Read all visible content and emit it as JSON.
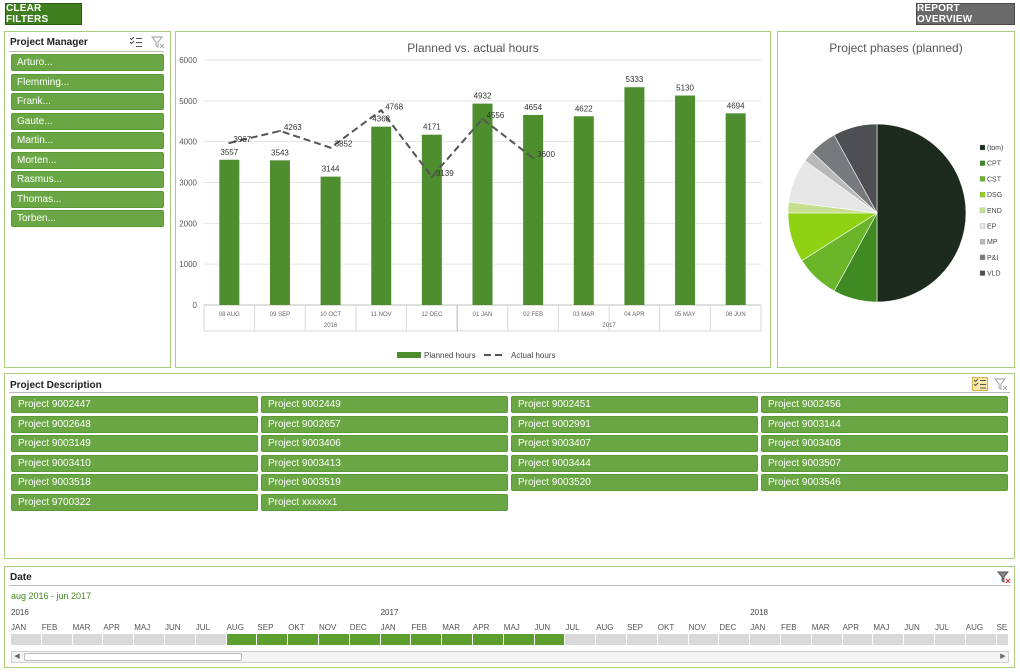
{
  "toolbar": {
    "clear_filters": "CLEAR FILTERS",
    "report_overview": "REPORT OVERVIEW"
  },
  "project_manager": {
    "title": "Project Manager",
    "items": [
      "Arturo...",
      "Flemming...",
      "Frank...",
      "Gaute...",
      "Martin...",
      "Morten...",
      "Rasmus...",
      "Thomas...",
      "Torben..."
    ]
  },
  "chart_data": [
    {
      "type": "bar",
      "title": "Planned vs. actual hours",
      "categories": [
        "08 AUG",
        "09 SEP",
        "10 OCT",
        "11 NOV",
        "12 DEC",
        "01 JAN",
        "02 FEB",
        "03 MAR",
        "04 APR",
        "05 MAY",
        "06 JUN"
      ],
      "year_groups": [
        {
          "label": "2016",
          "span": 5
        },
        {
          "label": "2017",
          "span": 6
        }
      ],
      "ylim": [
        0,
        6000
      ],
      "yticks": [
        0,
        1000,
        2000,
        3000,
        4000,
        5000,
        6000
      ],
      "grid": true,
      "legend": "bottom",
      "series": [
        {
          "name": "Planned hours",
          "type": "bar",
          "color": "#4e8e2e",
          "values": [
            3557,
            3543,
            3144,
            4368,
            4171,
            4932,
            4654,
            4622,
            5333,
            5130,
            4694
          ]
        },
        {
          "name": "Actual hours",
          "type": "line",
          "color": "#555555",
          "dashed": true,
          "values": [
            3967,
            4263,
            3852,
            4768,
            3139,
            4556,
            3600,
            null,
            null,
            null,
            null
          ]
        }
      ]
    },
    {
      "type": "pie",
      "title": "Project phases (planned)",
      "legend": "right",
      "slices": [
        {
          "name": "(tom)",
          "value": 50,
          "color": "#1c2b1e"
        },
        {
          "name": "CPT",
          "value": 8,
          "color": "#3f8a22"
        },
        {
          "name": "CST",
          "value": 8,
          "color": "#6bb52a"
        },
        {
          "name": "DSG",
          "value": 9,
          "color": "#8fd113"
        },
        {
          "name": "END",
          "value": 2,
          "color": "#c6e08f"
        },
        {
          "name": "EP",
          "value": 8,
          "color": "#e6e6e6"
        },
        {
          "name": "MP",
          "value": 2,
          "color": "#b9b9b9"
        },
        {
          "name": "P&I",
          "value": 5,
          "color": "#777a7d"
        },
        {
          "name": "VLD",
          "value": 8,
          "color": "#4d4f52"
        }
      ]
    }
  ],
  "project_description": {
    "title": "Project Description",
    "items": [
      "Project 9002447",
      "Project 9002449",
      "Project 9002451",
      "Project 9002456",
      "Project 9002648",
      "Project 9002657",
      "Project 9002991",
      "Project 9003144",
      "Project 9003149",
      "Project 9003406",
      "Project 9003407",
      "Project 9003408",
      "Project 9003410",
      "Project 9003413",
      "Project 9003444",
      "Project 9003507",
      "Project 9003518",
      "Project 9003519",
      "Project 9003520",
      "Project 9003546",
      "Project 9700322",
      "Project xxxxxx1"
    ]
  },
  "date_timeline": {
    "title": "Date",
    "range_label": "aug 2016 - jun 2017",
    "years": [
      {
        "label": "2016",
        "start_index": 0
      },
      {
        "label": "2017",
        "start_index": 12
      },
      {
        "label": "2018",
        "start_index": 24
      }
    ],
    "months": [
      "JAN",
      "FEB",
      "MAR",
      "APR",
      "MAJ",
      "JUN",
      "JUL",
      "AUG",
      "SEP",
      "OKT",
      "NOV",
      "DEC",
      "JAN",
      "FEB",
      "MAR",
      "APR",
      "MAJ",
      "JUN",
      "JUL",
      "AUG",
      "SEP",
      "OKT",
      "NOV",
      "DEC",
      "JAN",
      "FEB",
      "MAR",
      "APR",
      "MAJ",
      "JUN",
      "JUL",
      "AUG",
      "SE"
    ],
    "selected_from_index": 7,
    "selected_to_index": 17
  }
}
